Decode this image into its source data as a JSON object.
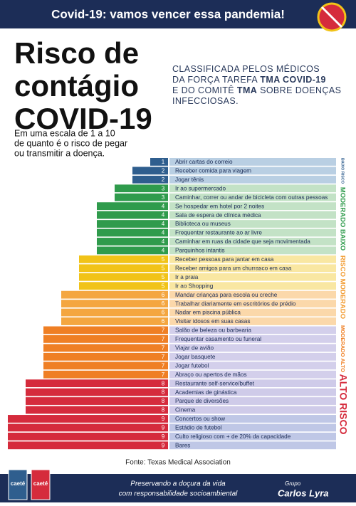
{
  "header": {
    "title": "Covid-19: vamos vencer essa pandemia!"
  },
  "title_lines": [
    "Risco de",
    "contágio",
    "COVID-19"
  ],
  "description_lines": [
    [
      {
        "text": "CLASSIFICADA PELOS MÉDICOS",
        "bold": false
      }
    ],
    [
      {
        "text": "DA FORÇA TAREFA ",
        "bold": false
      },
      {
        "text": "TMA COVID-19",
        "bold": true
      }
    ],
    [
      {
        "text": "E DO COMITÊ ",
        "bold": false
      },
      {
        "text": "TMA",
        "bold": true
      },
      {
        "text": " SOBRE DOENÇAS",
        "bold": false
      }
    ],
    [
      {
        "text": "INFECCIOSAS.",
        "bold": false
      }
    ]
  ],
  "subtitle_lines": [
    "Em uma escala de 1 a 10",
    "de quanto é o risco de pegar",
    "ou transmitir a doença."
  ],
  "chart_data": {
    "type": "bar",
    "orientation": "horizontal",
    "categories": [
      "Abrir cartas do correio",
      "Receber comida para viagem",
      "Jogar tênis",
      "Ir ao supermercado",
      "Caminhar, correr ou andar de bicicleta com outras pessoas",
      "Se hospedar em hotel por 2 noites",
      "Sala de espera de clínica médica",
      "Biblioteca ou museus",
      "Frequentar restaurante ao ar livre",
      "Caminhar em ruas da cidade que seja movimentada",
      "Parquinhos intantis",
      "Receber pessoas para jantar em casa",
      "Receber amigos para um churrasco em casa",
      "Ir a praia",
      "Ir ao Shopping",
      "Mandar crianças para escola ou creche",
      "Trabalhar diariamente em escritórios de prédio",
      "Nadar em piscina pública",
      "Visitar idosos em suas casas",
      "Salão de beleza ou barbearia",
      "Frequentar casamento ou funeral",
      "Viajar de avião",
      "Jogar basquete",
      "Jogar futebol",
      "Abraço ou apertos de mãos",
      "Restaurante self-service/buffet",
      "Academias de ginástica",
      "Parque de diversões",
      "Cinema",
      "Concertos ou show",
      "Estádio de futebol",
      "Culto religioso com + de 20% da capacidade",
      "Bares"
    ],
    "values": [
      1,
      2,
      2,
      3,
      3,
      4,
      4,
      4,
      4,
      4,
      4,
      5,
      5,
      5,
      5,
      6,
      6,
      6,
      6,
      7,
      7,
      7,
      7,
      7,
      7,
      8,
      8,
      8,
      8,
      9,
      9,
      9,
      9
    ],
    "palette": [
      {
        "bar": "#2f5e8e",
        "label": "#b9cfe3"
      },
      {
        "bar": "#2f5e8e",
        "label": "#b9cfe3"
      },
      {
        "bar": "#2f9b4c",
        "label": "#c3e2c6"
      },
      {
        "bar": "#2f9b4c",
        "label": "#c3e2c6"
      },
      {
        "bar": "#f1c318",
        "label": "#f9e7a2"
      },
      {
        "bar": "#f4a640",
        "label": "#fbd8aa"
      },
      {
        "bar": "#ef7f24",
        "label": "#d3cfeb"
      },
      {
        "bar": "#d52b3c",
        "label": "#cfcbe9"
      },
      {
        "bar": "#d52b3c",
        "label": "#bfc7e6"
      }
    ],
    "risk_bands": [
      {
        "label": "BAIXO RISCO",
        "color": "#2f5e8e"
      },
      {
        "label": "MODERADO BAIXO",
        "color": "#2f9b4c"
      },
      {
        "label": "RISCO MODERADO",
        "color": "#f29a2e"
      },
      {
        "label": "MODERADO ALTO",
        "color": "#ef7f24"
      },
      {
        "label": "ALTO RISCO",
        "color": "#d52b3c"
      }
    ]
  },
  "source": "Fonte: Texas Medical Association",
  "footer": {
    "slogan_lines": [
      "Preservando a doçura da vida",
      "com responsabilidade socioambiental"
    ],
    "brand_small": "Grupo",
    "brand": "Carlos Lyra",
    "product": "caeté"
  }
}
